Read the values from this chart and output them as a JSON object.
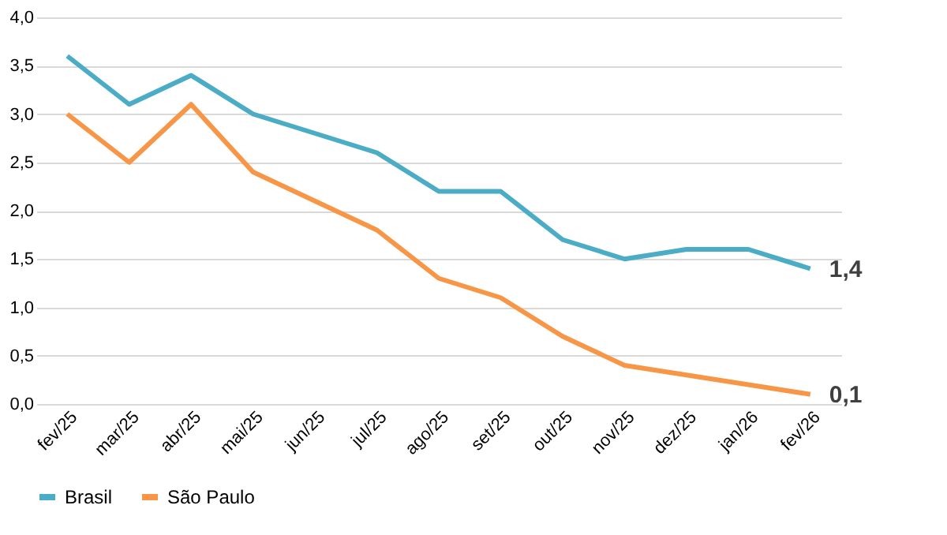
{
  "chart_data": {
    "type": "line",
    "categories": [
      "fev/25",
      "mar/25",
      "abr/25",
      "mai/25",
      "jun/25",
      "jul/25",
      "ago/25",
      "set/25",
      "out/25",
      "nov/25",
      "dez/25",
      "jan/26",
      "fev/26"
    ],
    "series": [
      {
        "name": "Brasil",
        "color": "#4bacc6",
        "values": [
          3.6,
          3.1,
          3.4,
          3.0,
          2.8,
          2.6,
          2.2,
          2.2,
          1.7,
          1.5,
          1.6,
          1.6,
          1.4
        ]
      },
      {
        "name": "São Paulo",
        "color": "#f79646",
        "values": [
          3.0,
          2.5,
          3.1,
          2.4,
          2.1,
          1.8,
          1.3,
          1.1,
          0.7,
          0.4,
          0.3,
          0.2,
          0.1
        ]
      }
    ],
    "ylim": [
      0,
      4
    ],
    "yticks": [
      {
        "value": 0,
        "label": "0,0"
      },
      {
        "value": 0.5,
        "label": "0,5"
      },
      {
        "value": 1,
        "label": "1,0"
      },
      {
        "value": 1.5,
        "label": "1,5"
      },
      {
        "value": 2,
        "label": "2,0"
      },
      {
        "value": 2.5,
        "label": "2,5"
      },
      {
        "value": 3,
        "label": "3,0"
      },
      {
        "value": 3.5,
        "label": "3,5"
      },
      {
        "value": 4,
        "label": "4,0"
      }
    ],
    "grid": "y",
    "legend": "bottom",
    "marker": "none",
    "line_style": "solid",
    "annotations": [
      {
        "text": "1,4",
        "x": "fev/26",
        "y": 1.4
      },
      {
        "text": "0,1",
        "x": "fev/26",
        "y": 0.1
      }
    ]
  }
}
